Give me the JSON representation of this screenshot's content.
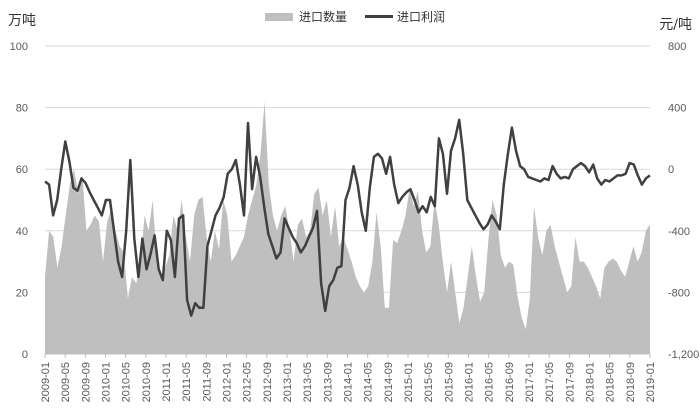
{
  "chart_data": {
    "type": "area+line",
    "title": "",
    "left_axis": {
      "label": "万吨",
      "ticks": [
        0,
        20,
        40,
        60,
        80,
        100
      ],
      "ylim": [
        0,
        100
      ]
    },
    "right_axis": {
      "label": "元/吨",
      "ticks": [
        -1200,
        -800,
        -400,
        0,
        400,
        800
      ],
      "tick_labels": [
        "-1,200",
        "-800",
        "-400",
        "0",
        "400",
        "800"
      ],
      "ylim": [
        -1200,
        800
      ]
    },
    "x_tick_labels": [
      "2009-01",
      "2009-05",
      "2009-09",
      "2010-01",
      "2010-05",
      "2010-09",
      "2011-01",
      "2011-05",
      "2011-09",
      "2012-01",
      "2012-05",
      "2012-09",
      "2013-01",
      "2013-05",
      "2013-09",
      "2014-01",
      "2014-05",
      "2014-09",
      "2015-01",
      "2015-05",
      "2015-09",
      "2016-01",
      "2016-05",
      "2016-09",
      "2017-01",
      "2017-05",
      "2017-09",
      "2018-01",
      "2018-05",
      "2018-09",
      "2019-01"
    ],
    "legend": [
      {
        "name": "进口数量",
        "type": "area",
        "color": "#bfbfbf",
        "axis": "left"
      },
      {
        "name": "进口利润",
        "type": "line",
        "color": "#404040",
        "axis": "right"
      }
    ],
    "grid": true,
    "legend_position": "top",
    "series": [
      {
        "name": "进口数量",
        "axis": "left",
        "values": [
          25,
          40,
          38,
          28,
          35,
          45,
          55,
          60,
          52,
          58,
          40,
          42,
          45,
          43,
          30,
          43,
          47,
          40,
          35,
          33,
          18,
          25,
          23,
          28,
          45,
          40,
          50,
          30,
          25,
          28,
          32,
          45,
          40,
          50,
          38,
          30,
          45,
          50,
          51,
          38,
          30,
          40,
          34,
          50,
          45,
          30,
          32,
          35,
          38,
          45,
          50,
          55,
          65,
          82,
          55,
          45,
          40,
          45,
          48,
          40,
          30,
          42,
          44,
          38,
          40,
          52,
          54,
          45,
          50,
          38,
          48,
          35,
          38,
          34,
          30,
          25,
          22,
          20,
          22,
          30,
          46,
          35,
          15,
          15,
          37,
          36,
          40,
          45,
          54,
          48,
          53,
          40,
          33,
          35,
          50,
          42,
          30,
          20,
          30,
          20,
          10,
          15,
          25,
          35,
          25,
          17,
          20,
          37,
          50,
          45,
          32,
          28,
          30,
          29,
          19,
          12,
          8,
          18,
          48,
          38,
          32,
          40,
          42,
          35,
          30,
          25,
          20,
          22,
          38,
          30,
          30,
          28,
          25,
          22,
          18,
          28,
          30,
          31,
          30,
          27,
          25,
          30,
          35,
          30,
          33,
          40,
          42
        ]
      },
      {
        "name": "进口利润",
        "axis": "right",
        "values": [
          -80,
          -100,
          -300,
          -200,
          0,
          180,
          50,
          -120,
          -140,
          -60,
          -90,
          -150,
          -200,
          -250,
          -300,
          -200,
          -200,
          -400,
          -600,
          -700,
          -400,
          60,
          -450,
          -700,
          -450,
          -650,
          -550,
          -430,
          -650,
          -720,
          -400,
          -460,
          -700,
          -320,
          -300,
          -850,
          -950,
          -870,
          -900,
          -900,
          -500,
          -400,
          -300,
          -250,
          -180,
          -30,
          0,
          60,
          -100,
          -300,
          300,
          -130,
          80,
          -50,
          -250,
          -420,
          -500,
          -580,
          -540,
          -320,
          -380,
          -440,
          -480,
          -540,
          -500,
          -440,
          -380,
          -270,
          -740,
          -920,
          -760,
          -720,
          -640,
          -630,
          -200,
          -120,
          20,
          -100,
          -280,
          -400,
          -120,
          80,
          100,
          70,
          -30,
          80,
          -100,
          -220,
          -180,
          -150,
          -130,
          -200,
          -280,
          -240,
          -280,
          -180,
          -240,
          200,
          100,
          -160,
          120,
          200,
          320,
          100,
          -200,
          -250,
          -300,
          -350,
          -390,
          -360,
          -300,
          -340,
          -390,
          -100,
          100,
          270,
          120,
          20,
          0,
          -50,
          -60,
          -70,
          -80,
          -60,
          -70,
          20,
          -30,
          -60,
          -50,
          -60,
          0,
          20,
          40,
          20,
          -20,
          30,
          -60,
          -100,
          -70,
          -80,
          -60,
          -40,
          -40,
          -30,
          40,
          30,
          -40,
          -100,
          -60,
          -40
        ]
      }
    ]
  }
}
